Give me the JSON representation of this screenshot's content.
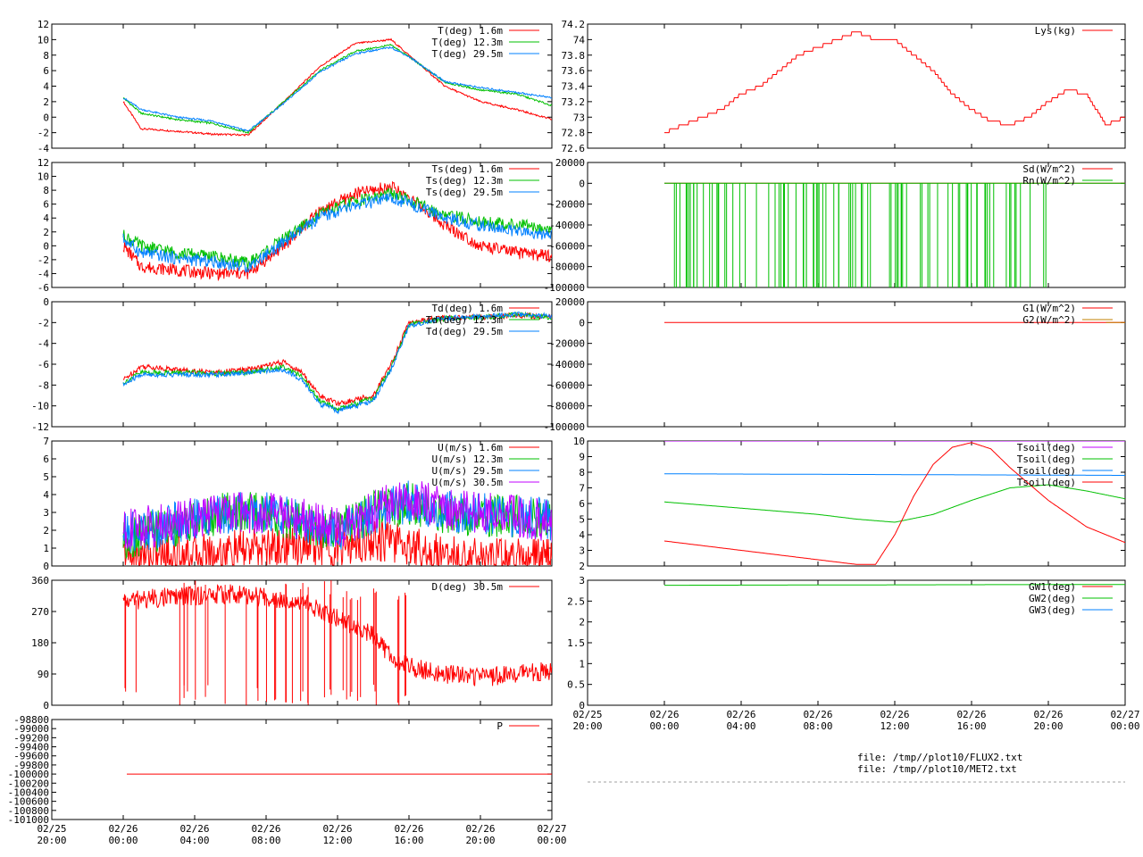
{
  "colors": {
    "red": "#ff0000",
    "green": "#00c000",
    "blue": "#0080ff",
    "purple": "#c000ff",
    "brown": "#c08000",
    "axis": "#000000",
    "divider": "#a0a0a0"
  },
  "x_ticks": [
    {
      "date": "02/25",
      "time": "20:00",
      "h": 0
    },
    {
      "date": "02/26",
      "time": "00:00",
      "h": 4
    },
    {
      "date": "02/26",
      "time": "04:00",
      "h": 8
    },
    {
      "date": "02/26",
      "time": "08:00",
      "h": 12
    },
    {
      "date": "02/26",
      "time": "12:00",
      "h": 16
    },
    {
      "date": "02/26",
      "time": "16:00",
      "h": 20
    },
    {
      "date": "02/26",
      "time": "20:00",
      "h": 24
    },
    {
      "date": "02/27",
      "time": "00:00",
      "h": 28
    }
  ],
  "file_info": [
    "file: /tmp//plot10/FLUX2.txt",
    "file: /tmp//plot10/MET2.txt"
  ],
  "chart_data": [
    {
      "id": "T",
      "type": "line",
      "ylim": [
        -4,
        12
      ],
      "yticks": [
        "-4",
        "-2",
        "0",
        "2",
        "4",
        "6",
        "8",
        "10",
        "12"
      ],
      "series": [
        {
          "name": "T(deg)  1.6m",
          "color": "red",
          "x": [
            4,
            5,
            7,
            9,
            11,
            13,
            15,
            17,
            19,
            20,
            22,
            24,
            26,
            28
          ],
          "y": [
            2,
            -1.5,
            -1.8,
            -2.2,
            -2.3,
            2,
            6.5,
            9.5,
            10,
            8,
            4,
            2,
            1,
            -0.3
          ]
        },
        {
          "name": "T(deg) 12.3m",
          "color": "green",
          "x": [
            4,
            5,
            7,
            9,
            11,
            13,
            15,
            17,
            19,
            20,
            22,
            24,
            26,
            28
          ],
          "y": [
            2.5,
            0.5,
            -0.3,
            -0.8,
            -2,
            2,
            6,
            8.5,
            9.3,
            7.8,
            4.5,
            3.5,
            3,
            1.5
          ]
        },
        {
          "name": "T(deg) 29.5m",
          "color": "blue",
          "x": [
            4,
            5,
            7,
            9,
            11,
            13,
            15,
            17,
            19,
            20,
            22,
            24,
            26,
            28
          ],
          "y": [
            2.5,
            1,
            0,
            -0.5,
            -1.8,
            1.8,
            5.8,
            8.2,
            9,
            7.8,
            4.6,
            3.8,
            3.2,
            2.5
          ]
        }
      ]
    },
    {
      "id": "Ts",
      "type": "line",
      "ylim": [
        -6,
        12
      ],
      "yticks": [
        "-6",
        "-4",
        "-2",
        "0",
        "2",
        "4",
        "6",
        "8",
        "10",
        "12"
      ],
      "series": [
        {
          "name": "Ts(deg)  1.6m",
          "color": "red",
          "x": [
            4,
            5,
            7,
            9,
            11,
            13,
            15,
            17,
            19,
            20,
            22,
            24,
            26,
            28
          ],
          "y": [
            0,
            -3,
            -3.5,
            -4,
            -4,
            0,
            5,
            7.5,
            8.5,
            7,
            3,
            0,
            -1,
            -1.5
          ]
        },
        {
          "name": "Ts(deg) 12.3m",
          "color": "green",
          "x": [
            4,
            5,
            7,
            9,
            11,
            13,
            15,
            17,
            19,
            20,
            22,
            24,
            26,
            28
          ],
          "y": [
            1.5,
            0,
            -1,
            -1.5,
            -2.5,
            1,
            4.5,
            6.5,
            7.5,
            6.5,
            4.5,
            3.5,
            3,
            2.5
          ]
        },
        {
          "name": "Ts(deg) 29.5m",
          "color": "blue",
          "x": [
            4,
            5,
            7,
            9,
            11,
            13,
            15,
            17,
            19,
            20,
            22,
            24,
            26,
            28
          ],
          "y": [
            1,
            -1,
            -1.8,
            -2.3,
            -3,
            0.5,
            4,
            5.8,
            6.8,
            6.2,
            4,
            3,
            2,
            1.5
          ]
        }
      ]
    },
    {
      "id": "Td",
      "type": "line",
      "ylim": [
        -12,
        0
      ],
      "yticks": [
        "-12",
        "-10",
        "-8",
        "-6",
        "-4",
        "-2",
        "0"
      ],
      "series": [
        {
          "name": "Td(deg)  1.6m",
          "color": "red",
          "x": [
            4,
            5,
            7,
            9,
            11,
            13,
            14,
            15,
            16,
            18,
            19,
            20,
            22,
            24,
            26,
            28
          ],
          "y": [
            -7.5,
            -6.2,
            -6.5,
            -6.8,
            -6.5,
            -5.8,
            -6.8,
            -9,
            -9.8,
            -9,
            -6,
            -2,
            -1.5,
            -1.5,
            -1.3,
            -1.5
          ]
        },
        {
          "name": "Td(deg) 12.3m",
          "color": "green",
          "x": [
            4,
            5,
            7,
            9,
            11,
            13,
            14,
            15,
            16,
            18,
            19,
            20,
            22,
            24,
            26,
            28
          ],
          "y": [
            -7.8,
            -6.8,
            -6.8,
            -6.9,
            -6.8,
            -6.2,
            -7.2,
            -9.5,
            -10.3,
            -9.3,
            -6.3,
            -2.2,
            -1.6,
            -1.5,
            -1.2,
            -1.5
          ]
        },
        {
          "name": "Td(deg) 29.5m",
          "color": "blue",
          "x": [
            4,
            5,
            7,
            9,
            11,
            13,
            14,
            15,
            16,
            18,
            19,
            20,
            22,
            24,
            26,
            28
          ],
          "y": [
            -8,
            -7,
            -7,
            -7,
            -6.8,
            -6.5,
            -7.5,
            -9.8,
            -10.5,
            -9.5,
            -6.5,
            -2.3,
            -1.6,
            -1.4,
            -1.2,
            -1.4
          ]
        }
      ]
    },
    {
      "id": "U",
      "type": "line",
      "ylim": [
        0,
        7
      ],
      "yticks": [
        "0",
        "1",
        "2",
        "3",
        "4",
        "5",
        "6",
        "7"
      ],
      "series": [
        {
          "name": "U(m/s)  1.6m",
          "color": "red",
          "x": [
            4,
            6,
            8,
            10,
            12,
            14,
            16,
            18,
            20,
            22,
            24,
            26,
            28
          ],
          "y": [
            0.5,
            0.6,
            0.7,
            0.8,
            1,
            1.2,
            1,
            1.5,
            1.2,
            0.5,
            0.4,
            0.4,
            0.5
          ]
        },
        {
          "name": "U(m/s) 12.3m",
          "color": "green",
          "x": [
            4,
            6,
            8,
            10,
            12,
            14,
            16,
            18,
            20,
            22,
            24,
            26,
            28
          ],
          "y": [
            1.5,
            2,
            2.5,
            3,
            3,
            2.5,
            2,
            3,
            3.5,
            3,
            2.8,
            2.8,
            2.5
          ]
        },
        {
          "name": "U(m/s) 29.5m",
          "color": "blue",
          "x": [
            4,
            6,
            8,
            10,
            12,
            14,
            16,
            18,
            20,
            22,
            24,
            26,
            28
          ],
          "y": [
            1.8,
            2.2,
            2.6,
            3,
            3,
            2.6,
            2,
            3,
            3.6,
            3.1,
            2.9,
            2.8,
            2.6
          ]
        },
        {
          "name": "U(m/s) 30.5m",
          "color": "purple",
          "x": [
            4,
            6,
            8,
            10,
            12,
            14,
            16,
            18,
            20,
            22,
            24,
            26,
            28
          ],
          "y": [
            2,
            2.3,
            2.7,
            3,
            3,
            2.7,
            2.1,
            3.1,
            3.8,
            3.2,
            3,
            2.8,
            2.5
          ]
        }
      ]
    },
    {
      "id": "D",
      "type": "line",
      "ylim": [
        0,
        360
      ],
      "yticks": [
        "0",
        "90",
        "180",
        "270",
        "360"
      ],
      "series": [
        {
          "name": "D(deg)  30.5m",
          "color": "red",
          "x": [
            4,
            6,
            8,
            10,
            12,
            14,
            16,
            18,
            19,
            20,
            22,
            24,
            26,
            28
          ],
          "y": [
            300,
            310,
            315,
            320,
            310,
            300,
            250,
            200,
            140,
            110,
            90,
            80,
            90,
            100
          ]
        }
      ]
    },
    {
      "id": "P",
      "type": "line",
      "ylim": [
        -101000,
        -98800
      ],
      "yticks": [
        "-101000",
        "-100800",
        "-100600",
        "-100400",
        "-100200",
        "-100000",
        "-99800",
        "-99600",
        "-99400",
        "-99200",
        "-99000",
        "-98800"
      ],
      "series": [
        {
          "name": "P",
          "color": "red",
          "x": [
            4.2,
            28
          ],
          "y": [
            -100000,
            -100000
          ]
        }
      ]
    },
    {
      "id": "Lys",
      "type": "line",
      "ylim": [
        72.6,
        74.2
      ],
      "yticks": [
        "72.6",
        "72.8",
        "73",
        "73.2",
        "73.4",
        "73.6",
        "73.8",
        "74",
        "74.2"
      ],
      "series": [
        {
          "name": "Lys(kg)",
          "color": "red",
          "x": [
            4,
            5,
            6,
            7,
            8,
            9,
            10,
            11,
            12,
            13,
            14,
            15,
            16,
            17,
            18,
            19,
            20,
            21,
            22,
            23,
            24,
            25,
            26,
            27,
            28
          ],
          "y": [
            72.8,
            72.9,
            73,
            73.1,
            73.3,
            73.4,
            73.6,
            73.8,
            73.9,
            74,
            74.1,
            74,
            74,
            73.8,
            73.6,
            73.3,
            73.1,
            72.95,
            72.9,
            73,
            73.2,
            73.35,
            73.3,
            72.9,
            73
          ]
        }
      ]
    },
    {
      "id": "Sd",
      "type": "line",
      "ylim": [
        -100000,
        20000
      ],
      "yticks": [
        "-100000",
        "-80000",
        "-60000",
        "-40000",
        "-20000",
        "0",
        "20000"
      ],
      "series": [
        {
          "name": "Sd(W/m^2)",
          "color": "red",
          "x": [
            4,
            28
          ],
          "y": [
            0,
            0
          ]
        },
        {
          "name": "Rn(W/m^2)",
          "color": "green",
          "x": [
            4,
            28
          ],
          "y": [
            0,
            0
          ]
        }
      ]
    },
    {
      "id": "G",
      "type": "line",
      "ylim": [
        -100000,
        20000
      ],
      "yticks": [
        "-100000",
        "-80000",
        "-60000",
        "-40000",
        "-20000",
        "0",
        "20000"
      ],
      "series": [
        {
          "name": "G1(W/m^2)",
          "color": "red",
          "x": [
            4,
            28
          ],
          "y": [
            0,
            0
          ]
        },
        {
          "name": "G2(W/m^2)",
          "color": "brown",
          "x": [
            27,
            28
          ],
          "y": [
            0,
            0
          ]
        }
      ]
    },
    {
      "id": "Tsoil",
      "type": "line",
      "ylim": [
        2,
        10
      ],
      "yticks": [
        "2",
        "3",
        "4",
        "5",
        "6",
        "7",
        "8",
        "9",
        "10"
      ],
      "series": [
        {
          "name": "Tsoil(deg)",
          "color": "purple",
          "x": [
            4,
            28
          ],
          "y": [
            10,
            10
          ]
        },
        {
          "name": "Tsoil(deg)",
          "color": "green",
          "x": [
            4,
            8,
            12,
            14,
            16,
            18,
            20,
            22,
            24,
            26,
            28
          ],
          "y": [
            6.1,
            5.7,
            5.3,
            5,
            4.8,
            5.3,
            6.2,
            7,
            7.2,
            6.8,
            6.3
          ]
        },
        {
          "name": "Tsoil(deg)",
          "color": "blue",
          "x": [
            4,
            28
          ],
          "y": [
            7.9,
            7.8
          ]
        },
        {
          "name": "Tsoil(deg)",
          "color": "red",
          "x": [
            4,
            8,
            12,
            14,
            15,
            16,
            17,
            18,
            19,
            20,
            21,
            22,
            24,
            26,
            28
          ],
          "y": [
            3.6,
            3,
            2.4,
            2.1,
            2.1,
            4,
            6.5,
            8.5,
            9.6,
            9.9,
            9.5,
            8.3,
            6.2,
            4.5,
            3.5
          ]
        }
      ]
    },
    {
      "id": "GW",
      "type": "line",
      "ylim": [
        0,
        3
      ],
      "yticks": [
        "0",
        "0.5",
        "1",
        "1.5",
        "2",
        "2.5",
        "3"
      ],
      "series": [
        {
          "name": "GW1(deg)",
          "color": "red",
          "x": [],
          "y": []
        },
        {
          "name": "GW2(deg)",
          "color": "green",
          "x": [
            4,
            28
          ],
          "y": [
            2.88,
            2.9
          ]
        },
        {
          "name": "GW3(deg)",
          "color": "blue",
          "x": [],
          "y": []
        }
      ]
    }
  ]
}
